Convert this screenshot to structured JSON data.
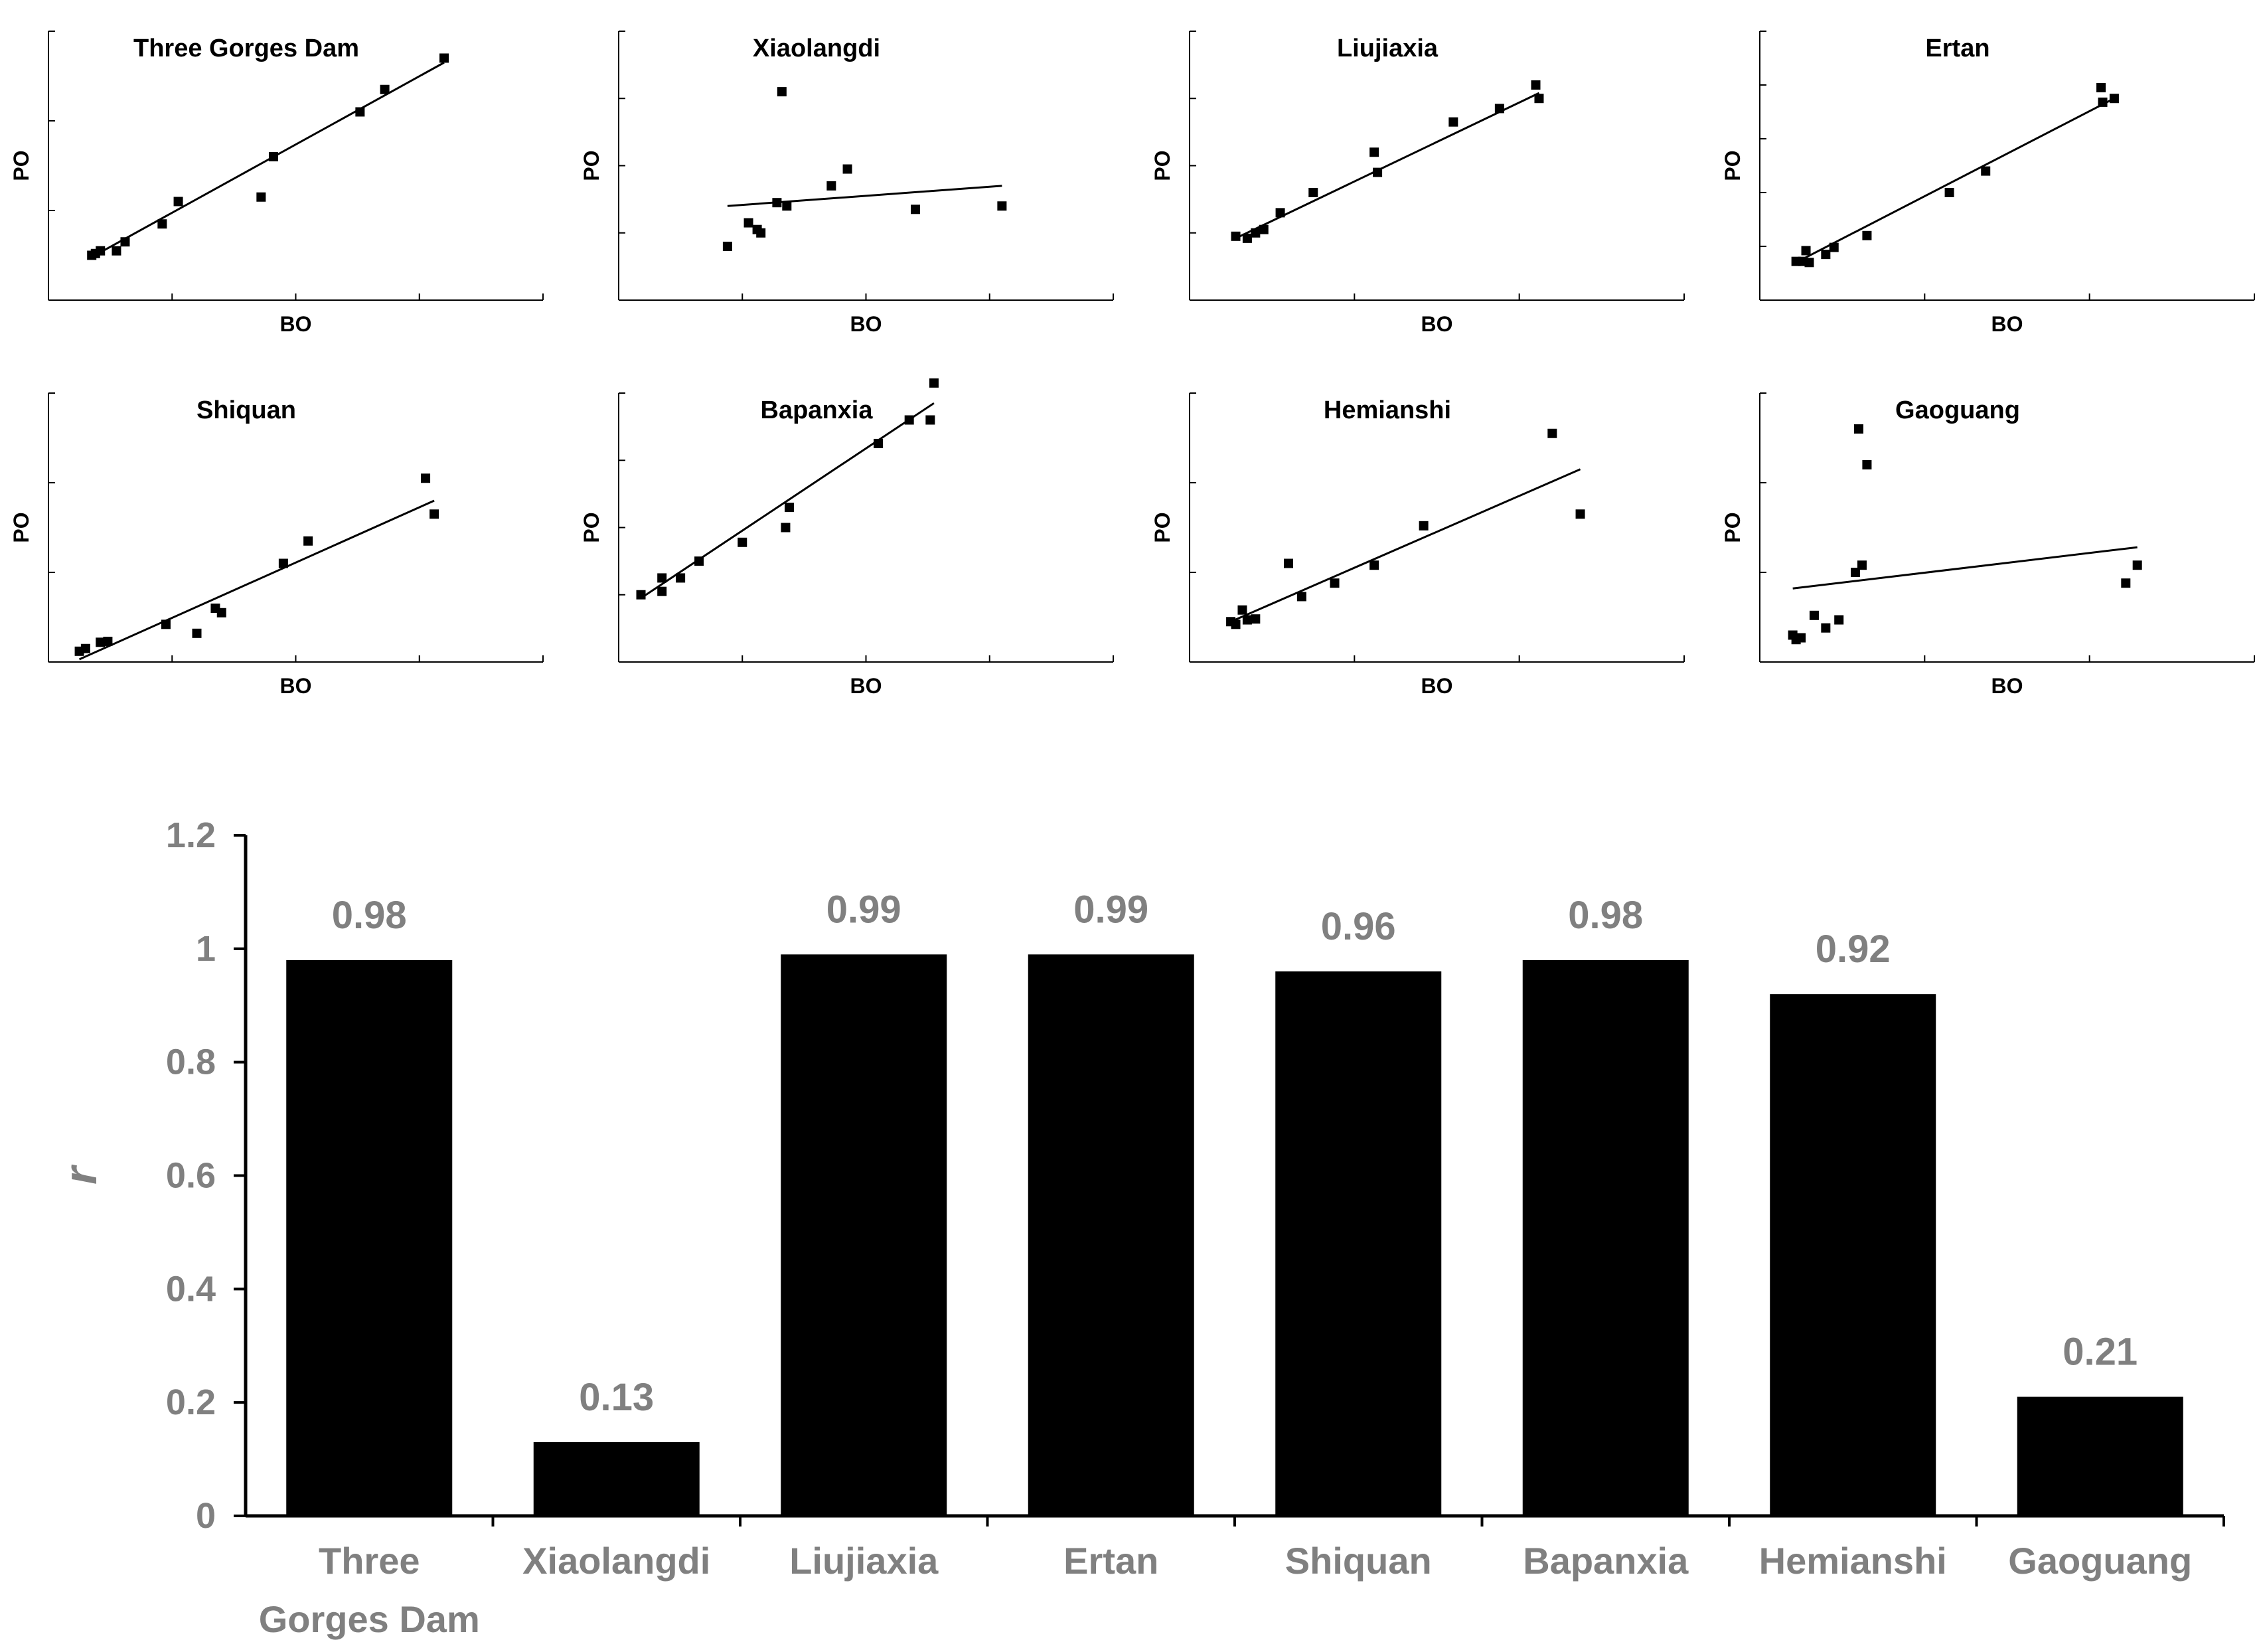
{
  "chart_data": [
    {
      "type": "scatter",
      "title": "Three Gorges Dam",
      "xlabel": "BO",
      "ylabel": "PO",
      "xlim": [
        0,
        4
      ],
      "ylim": [
        0,
        3
      ],
      "points": [
        [
          0.35,
          0.5
        ],
        [
          0.38,
          0.52
        ],
        [
          0.42,
          0.55
        ],
        [
          0.55,
          0.55
        ],
        [
          0.62,
          0.65
        ],
        [
          0.92,
          0.85
        ],
        [
          1.05,
          1.1
        ],
        [
          1.72,
          1.15
        ],
        [
          1.82,
          1.6
        ],
        [
          2.52,
          2.1
        ],
        [
          2.72,
          2.35
        ],
        [
          3.2,
          2.7
        ]
      ],
      "fit": [
        [
          0.35,
          0.48
        ],
        [
          3.2,
          2.65
        ]
      ]
    },
    {
      "type": "scatter",
      "title": "Xiaolangdi",
      "xlabel": "BO",
      "ylabel": "PO",
      "xlim": [
        0,
        4
      ],
      "ylim": [
        0,
        4
      ],
      "points": [
        [
          0.88,
          0.8
        ],
        [
          1.05,
          1.15
        ],
        [
          1.12,
          1.05
        ],
        [
          1.15,
          1.0
        ],
        [
          1.28,
          1.45
        ],
        [
          1.32,
          3.1
        ],
        [
          1.36,
          1.4
        ],
        [
          1.72,
          1.7
        ],
        [
          1.85,
          1.95
        ],
        [
          2.4,
          1.35
        ],
        [
          3.1,
          1.4
        ]
      ],
      "fit": [
        [
          0.88,
          1.4
        ],
        [
          3.1,
          1.7
        ]
      ]
    },
    {
      "type": "scatter",
      "title": "Liujiaxia",
      "xlabel": "BO",
      "ylabel": "PO",
      "xlim": [
        0,
        3
      ],
      "ylim": [
        0,
        4
      ],
      "points": [
        [
          0.28,
          0.95
        ],
        [
          0.35,
          0.92
        ],
        [
          0.4,
          1.0
        ],
        [
          0.45,
          1.05
        ],
        [
          0.55,
          1.3
        ],
        [
          0.75,
          1.6
        ],
        [
          1.12,
          2.2
        ],
        [
          1.14,
          1.9
        ],
        [
          1.6,
          2.65
        ],
        [
          1.88,
          2.85
        ],
        [
          2.12,
          3.0
        ],
        [
          2.1,
          3.2
        ]
      ],
      "fit": [
        [
          0.28,
          0.92
        ],
        [
          2.12,
          3.08
        ]
      ]
    },
    {
      "type": "scatter",
      "title": "Ertan",
      "xlabel": "BO",
      "ylabel": "PO",
      "xlim": [
        0,
        3
      ],
      "ylim": [
        0,
        5
      ],
      "points": [
        [
          0.22,
          0.72
        ],
        [
          0.26,
          0.72
        ],
        [
          0.28,
          0.92
        ],
        [
          0.3,
          0.7
        ],
        [
          0.4,
          0.85
        ],
        [
          0.45,
          0.98
        ],
        [
          0.65,
          1.2
        ],
        [
          1.15,
          2.0
        ],
        [
          1.37,
          2.4
        ],
        [
          2.07,
          3.95
        ],
        [
          2.08,
          3.68
        ],
        [
          2.15,
          3.75
        ]
      ],
      "fit": [
        [
          0.22,
          0.7
        ],
        [
          2.15,
          3.75
        ]
      ]
    },
    {
      "type": "scatter",
      "title": "Shiquan",
      "xlabel": "BO",
      "ylabel": "PO",
      "xlim": [
        0,
        4
      ],
      "ylim": [
        0,
        3
      ],
      "points": [
        [
          0.25,
          0.12
        ],
        [
          0.3,
          0.15
        ],
        [
          0.42,
          0.22
        ],
        [
          0.48,
          0.23
        ],
        [
          0.95,
          0.42
        ],
        [
          1.2,
          0.32
        ],
        [
          1.35,
          0.6
        ],
        [
          1.4,
          0.55
        ],
        [
          1.9,
          1.1
        ],
        [
          2.1,
          1.35
        ],
        [
          3.05,
          2.05
        ],
        [
          3.12,
          1.65
        ]
      ],
      "fit": [
        [
          0.25,
          0.03
        ],
        [
          3.12,
          1.8
        ]
      ]
    },
    {
      "type": "scatter",
      "title": "Bapanxia",
      "xlabel": "BO",
      "ylabel": "PO",
      "xlim": [
        0,
        4
      ],
      "ylim": [
        0,
        4
      ],
      "points": [
        [
          0.18,
          1.0
        ],
        [
          0.35,
          1.05
        ],
        [
          0.35,
          1.25
        ],
        [
          0.5,
          1.25
        ],
        [
          0.65,
          1.5
        ],
        [
          1.0,
          1.78
        ],
        [
          1.35,
          2.0
        ],
        [
          1.38,
          2.3
        ],
        [
          2.1,
          3.25
        ],
        [
          2.35,
          3.6
        ],
        [
          2.52,
          3.6
        ],
        [
          2.55,
          4.15
        ]
      ],
      "fit": [
        [
          0.18,
          0.95
        ],
        [
          2.55,
          3.85
        ]
      ]
    },
    {
      "type": "scatter",
      "title": "Hemianshi",
      "xlabel": "BO",
      "ylabel": "PO",
      "xlim": [
        0,
        3
      ],
      "ylim": [
        0,
        3
      ],
      "points": [
        [
          0.25,
          0.45
        ],
        [
          0.28,
          0.42
        ],
        [
          0.32,
          0.58
        ],
        [
          0.35,
          0.47
        ],
        [
          0.4,
          0.48
        ],
        [
          0.6,
          1.1
        ],
        [
          0.68,
          0.73
        ],
        [
          0.88,
          0.88
        ],
        [
          1.12,
          1.08
        ],
        [
          1.42,
          1.52
        ],
        [
          2.2,
          2.55
        ],
        [
          2.37,
          1.65
        ]
      ],
      "fit": [
        [
          0.25,
          0.45
        ],
        [
          2.37,
          2.15
        ]
      ]
    },
    {
      "type": "scatter",
      "title": "Gaoguang",
      "xlabel": "BO",
      "ylabel": "PO",
      "xlim": [
        0,
        3
      ],
      "ylim": [
        0,
        3
      ],
      "points": [
        [
          0.2,
          0.3
        ],
        [
          0.22,
          0.25
        ],
        [
          0.25,
          0.27
        ],
        [
          0.33,
          0.52
        ],
        [
          0.4,
          0.38
        ],
        [
          0.48,
          0.47
        ],
        [
          0.58,
          1.0
        ],
        [
          0.6,
          2.6
        ],
        [
          0.62,
          1.08
        ],
        [
          0.65,
          2.2
        ],
        [
          2.22,
          0.88
        ],
        [
          2.29,
          1.08
        ]
      ],
      "fit": [
        [
          0.2,
          0.82
        ],
        [
          2.29,
          1.28
        ]
      ]
    },
    {
      "type": "bar",
      "ylabel": "r",
      "ylim": [
        0,
        1.2
      ],
      "yticks": [
        "0",
        "0.2",
        "0.4",
        "0.6",
        "0.8",
        "1",
        "1.2"
      ],
      "categories": [
        "Three Gorges Dam",
        "Xiaolangdi",
        "Liujiaxia",
        "Ertan",
        "Shiquan",
        "Bapanxia",
        "Hemianshi",
        "Gaoguang"
      ],
      "category_lines": [
        [
          "Three",
          "Gorges Dam"
        ],
        [
          "Xiaolangdi"
        ],
        [
          "Liujiaxia"
        ],
        [
          "Ertan"
        ],
        [
          "Shiquan"
        ],
        [
          "Bapanxia"
        ],
        [
          "Hemianshi"
        ],
        [
          "Gaoguang"
        ]
      ],
      "values": [
        0.98,
        0.13,
        0.99,
        0.99,
        0.96,
        0.98,
        0.92,
        0.21
      ],
      "value_labels": [
        "0.98",
        "0.13",
        "0.99",
        "0.99",
        "0.96",
        "0.98",
        "0.92",
        "0.21"
      ],
      "bar_color": "#000000",
      "label_color": "#808080",
      "legend": "none",
      "grid": false
    }
  ]
}
